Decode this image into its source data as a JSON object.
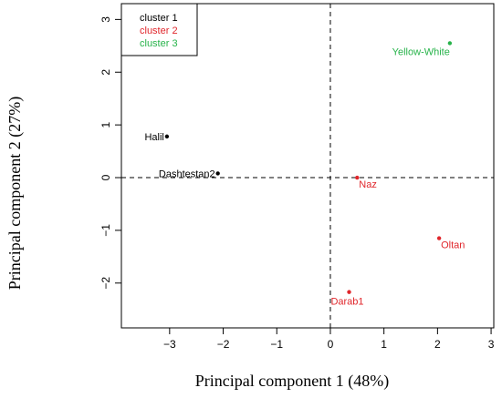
{
  "chart_data": {
    "type": "scatter",
    "xlabel": "Principal component 1 (48%)",
    "ylabel": "Principal component 2 (27%)",
    "xlim": [
      -3.9,
      3.05
    ],
    "ylim": [
      -2.85,
      3.3
    ],
    "xticks": [
      "-3",
      "-2",
      "-1",
      "0",
      "1",
      "2",
      "3"
    ],
    "yticks": [
      "-2",
      "-1",
      "0",
      "1",
      "2",
      "3"
    ],
    "reference_lines": {
      "x": 0,
      "y": 0,
      "style": "dashed"
    },
    "legend": {
      "position": "top-left",
      "entries": [
        {
          "label": "cluster 1",
          "color": "#000000"
        },
        {
          "label": "cluster 2",
          "color": "#e0262b"
        },
        {
          "label": "cluster 3",
          "color": "#27b34a"
        }
      ]
    },
    "points": [
      {
        "label": "Halil",
        "x": -3.05,
        "y": 0.78,
        "cluster": 1,
        "label_side": "left"
      },
      {
        "label": "Dashtestan2",
        "x": -2.1,
        "y": 0.08,
        "cluster": 1,
        "label_side": "left"
      },
      {
        "label": "Naz",
        "x": 0.5,
        "y": 0.0,
        "cluster": 2,
        "label_side": "right-below"
      },
      {
        "label": "Oltan",
        "x": 2.03,
        "y": -1.15,
        "cluster": 2,
        "label_side": "right-below"
      },
      {
        "label": "Darab1",
        "x": 0.35,
        "y": -2.17,
        "cluster": 2,
        "label_side": "below"
      },
      {
        "label": "Yellow-White",
        "x": 2.23,
        "y": 2.55,
        "cluster": 3,
        "label_side": "left-below"
      }
    ]
  }
}
